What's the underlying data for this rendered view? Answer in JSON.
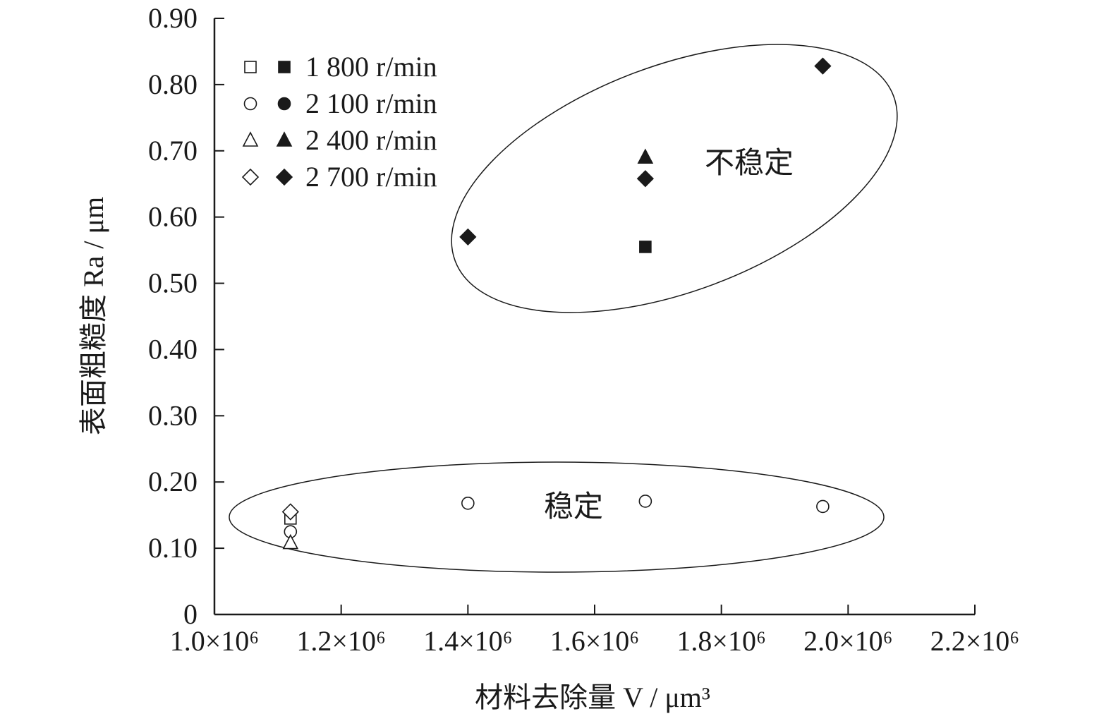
{
  "chart_data": {
    "type": "scatter",
    "xlabel": "材料去除量 V / μm³",
    "ylabel": "表面粗糙度 Ra / μm",
    "xlim": [
      1000000.0,
      2200000.0
    ],
    "ylim": [
      0,
      0.9
    ],
    "x_ticks": [
      1000000.0,
      1200000.0,
      1400000.0,
      1600000.0,
      1800000.0,
      2000000.0,
      2200000.0
    ],
    "x_tick_labels": [
      "1.0×10⁶",
      "1.2×10⁶",
      "1.4×10⁶",
      "1.6×10⁶",
      "1.8×10⁶",
      "2.0×10⁶",
      "2.2×10⁶"
    ],
    "y_ticks": [
      0,
      0.1,
      0.2,
      0.3,
      0.4,
      0.5,
      0.6,
      0.7,
      0.8,
      0.9
    ],
    "y_tick_labels": [
      "0",
      "0.10",
      "0.20",
      "0.30",
      "0.40",
      "0.50",
      "0.60",
      "0.70",
      "0.80",
      "0.90"
    ],
    "grid": false,
    "legend_position": "top-left",
    "series": [
      {
        "name": "1 800 r/min",
        "marker": "square",
        "stable": [
          {
            "x": 1120000.0,
            "y": 0.145
          }
        ],
        "unstable": [
          {
            "x": 1680000.0,
            "y": 0.555
          }
        ]
      },
      {
        "name": "2 100 r/min",
        "marker": "circle",
        "stable": [
          {
            "x": 1120000.0,
            "y": 0.125
          },
          {
            "x": 1400000.0,
            "y": 0.168
          },
          {
            "x": 1680000.0,
            "y": 0.171
          },
          {
            "x": 1960000.0,
            "y": 0.163
          }
        ],
        "unstable": []
      },
      {
        "name": "2 400 r/min",
        "marker": "triangle",
        "stable": [
          {
            "x": 1120000.0,
            "y": 0.108
          }
        ],
        "unstable": [
          {
            "x": 1680000.0,
            "y": 0.69
          }
        ]
      },
      {
        "name": "2 700 r/min",
        "marker": "diamond",
        "stable": [
          {
            "x": 1120000.0,
            "y": 0.155
          }
        ],
        "unstable": [
          {
            "x": 1400000.0,
            "y": 0.57
          },
          {
            "x": 1680000.0,
            "y": 0.658
          },
          {
            "x": 1960000.0,
            "y": 0.828
          }
        ]
      }
    ],
    "annotations": [
      {
        "text": "不稳定",
        "region": "unstable"
      },
      {
        "text": "稳定",
        "region": "stable"
      }
    ]
  },
  "colors": {
    "marker_stroke": "#1a1a1a",
    "open_fill": "#ffffff",
    "filled": "#1a1a1a",
    "axis": "#1a1a1a"
  }
}
